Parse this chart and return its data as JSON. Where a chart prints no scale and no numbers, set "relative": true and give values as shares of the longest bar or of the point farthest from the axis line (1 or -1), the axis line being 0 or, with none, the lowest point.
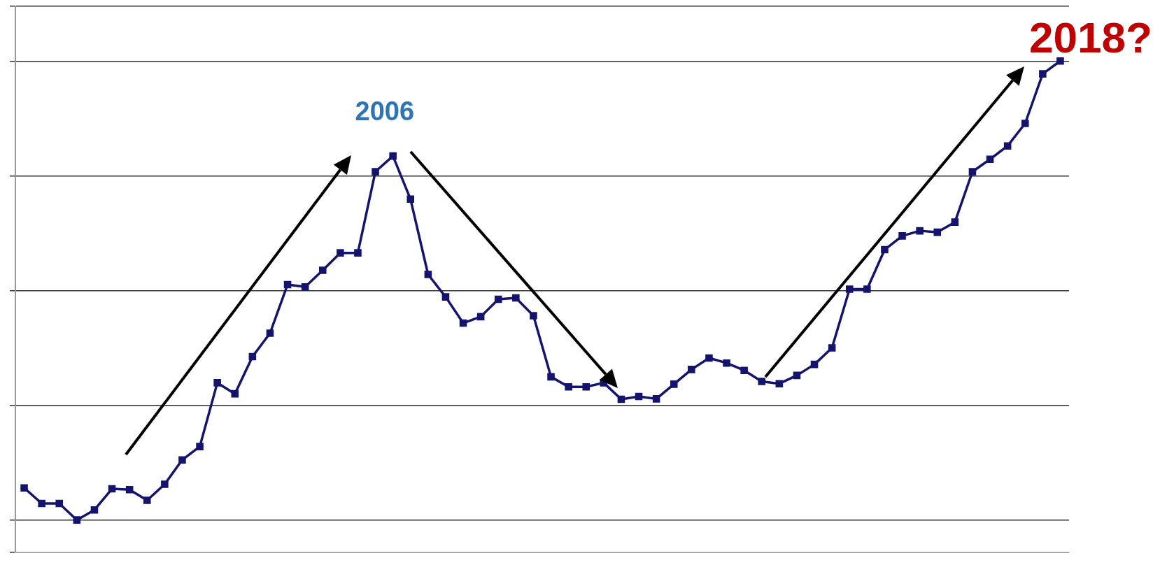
{
  "chart_data": {
    "type": "line",
    "relative": true,
    "grid": "y",
    "marker": "square",
    "line_style": "solid",
    "legend": false,
    "categories": [
      null,
      null,
      null,
      null,
      null,
      null,
      null,
      null,
      null,
      null,
      null,
      null,
      null,
      null,
      null,
      null,
      null,
      null,
      null,
      null,
      null,
      null,
      null,
      null,
      null,
      null,
      null,
      null,
      null,
      null,
      null,
      null,
      null,
      null,
      null,
      null,
      null,
      null,
      null,
      null,
      null,
      null,
      null,
      null,
      null,
      null,
      null,
      null,
      null,
      null,
      null,
      null,
      null,
      null,
      null,
      null,
      null,
      null,
      null,
      null
    ],
    "series": [
      {
        "color": "#14146e",
        "values": [
          0.07,
          0.036,
          0.036,
          0,
          0.022,
          0.068,
          0.066,
          0.043,
          0.078,
          0.131,
          0.16,
          0.299,
          0.275,
          0.356,
          0.407,
          0.513,
          0.508,
          0.544,
          0.582,
          0.582,
          0.759,
          0.793,
          0.699,
          0.535,
          0.486,
          0.429,
          0.443,
          0.481,
          0.484,
          0.445,
          0.312,
          0.29,
          0.29,
          0.299,
          0.263,
          0.269,
          0.264,
          0.296,
          0.328,
          0.353,
          0.342,
          0.326,
          0.302,
          0.297,
          0.315,
          0.339,
          0.375,
          0.503,
          0.503,
          0.589,
          0.619,
          0.63,
          0.627,
          0.649,
          0.759,
          0.786,
          0.815,
          0.864,
          0.972,
          1
        ]
      }
    ],
    "annotations": [
      "2006",
      "2018?"
    ]
  }
}
